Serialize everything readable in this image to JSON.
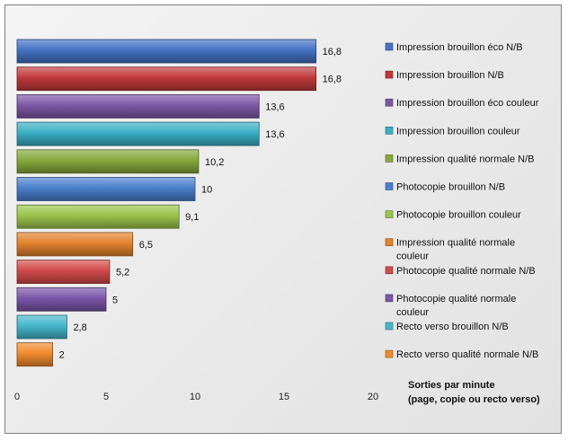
{
  "chart_data": {
    "type": "bar",
    "orientation": "horizontal",
    "categories": [
      "Impression brouillon éco N/B",
      "Impression brouillon N/B",
      "Impression brouillon éco couleur",
      "Impression brouillon couleur",
      "Impression qualité normale N/B",
      "Photocopie brouillon N/B",
      "Photocopie brouillon couleur",
      "Impression qualité normale couleur",
      "Photocopie qualité normale N/B",
      "Photocopie qualité normale couleur",
      "Recto verso brouillon N/B",
      "Recto verso qualité normale N/B"
    ],
    "legend_lines": [
      [
        "Impression brouillon éco N/B"
      ],
      [
        "Impression brouillon N/B"
      ],
      [
        "Impression brouillon éco couleur"
      ],
      [
        "Impression brouillon couleur"
      ],
      [
        "Impression qualité normale N/B"
      ],
      [
        "Photocopie brouillon N/B"
      ],
      [
        "Photocopie brouillon couleur"
      ],
      [
        "Impression qualité normale",
        "couleur"
      ],
      [
        "Photocopie qualité normale N/B"
      ],
      [
        "Photocopie qualité normale",
        "couleur"
      ],
      [
        "Recto verso brouillon N/B"
      ],
      [
        "Recto verso qualité normale N/B"
      ]
    ],
    "values": [
      16.8,
      16.8,
      13.6,
      13.6,
      10.2,
      10,
      9.1,
      6.5,
      5.2,
      5,
      2.8,
      2
    ],
    "value_labels": [
      "16,8",
      "16,8",
      "13,6",
      "13,6",
      "10,2",
      "10",
      "9,1",
      "6,5",
      "5,2",
      "5",
      "2,8",
      "2"
    ],
    "colors": [
      "#4472c4",
      "#c0393b",
      "#7e57a6",
      "#3aaec4",
      "#86a83b",
      "#4a7fcc",
      "#9bc44c",
      "#e3822d",
      "#d24a4a",
      "#7b55a8",
      "#45b6cc",
      "#f08a2c"
    ],
    "xlim": [
      0,
      20
    ],
    "xticks": [
      0,
      5,
      10,
      15,
      20
    ],
    "xtick_labels": [
      "0",
      "5",
      "10",
      "15",
      "20"
    ],
    "xlabel_lines": [
      "Sorties par minute",
      "(page, copie ou recto verso)"
    ],
    "legend_position": "right",
    "grid": false
  }
}
